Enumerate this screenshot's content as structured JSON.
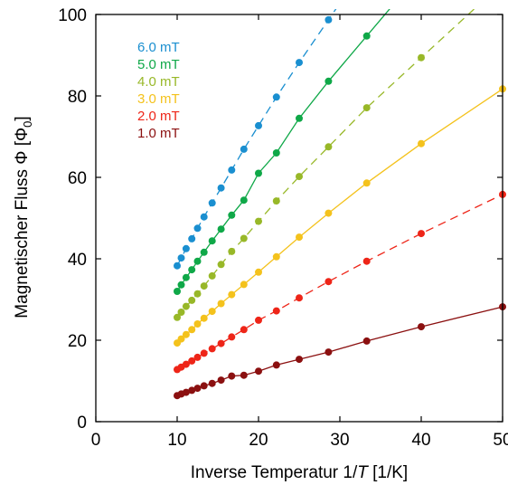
{
  "chart_data": {
    "type": "scatter",
    "xlabel": {
      "prefix": "Inverse Temperatur 1/",
      "var": "T",
      "suffix": " [1/K]"
    },
    "ylabel": {
      "prefix": "Magnetischer Fluss ",
      "symbol": "Φ",
      "unit_open": " [Φ",
      "unit_sub": "0",
      "unit_close": "]"
    },
    "xlim": [
      0,
      50
    ],
    "ylim": [
      0,
      100
    ],
    "xticks": [
      0,
      10,
      20,
      30,
      40,
      50
    ],
    "yticks": [
      0,
      20,
      40,
      60,
      80,
      100
    ],
    "grid": false,
    "legend_position": "top-left",
    "x": [
      10,
      10.5,
      11.1,
      11.8,
      12.5,
      13.3,
      14.3,
      15.4,
      16.7,
      18.2,
      20,
      22.2,
      25,
      28.6,
      33.3,
      40,
      50
    ],
    "series": [
      {
        "name": "6.0 mT",
        "color": "#1a8fd0",
        "line": "dashed",
        "values": [
          38.3,
          40.2,
          42.5,
          44.9,
          47.5,
          50.3,
          53.7,
          57.4,
          61.8,
          66.9,
          72.7,
          79.7,
          88.2,
          98.7,
          null,
          null,
          null
        ]
      },
      {
        "name": "5.0 mT",
        "color": "#0fa848",
        "line": "solid",
        "values": [
          32,
          33.6,
          35.4,
          37.3,
          39.4,
          41.6,
          44.4,
          47.3,
          50.7,
          54.4,
          61.0,
          66.0,
          74.5,
          83.6,
          94.7,
          null,
          null
        ]
      },
      {
        "name": "4.0 mT",
        "color": "#98b828",
        "line": "dashed",
        "values": [
          25.6,
          26.9,
          28.3,
          29.8,
          31.4,
          33.3,
          35.8,
          38.6,
          41.8,
          45.0,
          49.2,
          54.2,
          60.2,
          67.5,
          77.1,
          89.4,
          null
        ]
      },
      {
        "name": "3.0 mT",
        "color": "#f4c21c",
        "line": "solid",
        "values": [
          19.3,
          20.3,
          21.4,
          22.6,
          24.0,
          25.4,
          27.1,
          29.0,
          31.2,
          33.7,
          36.7,
          40.5,
          45.3,
          51.2,
          58.6,
          68.3,
          81.7
        ]
      },
      {
        "name": "2.0 mT",
        "color": "#ee2518",
        "line": "dashed",
        "values": [
          12.8,
          13.4,
          14.1,
          14.9,
          15.8,
          16.8,
          17.9,
          19.2,
          20.8,
          22.6,
          24.9,
          27.2,
          30.4,
          34.4,
          39.4,
          46.2,
          55.8
        ]
      },
      {
        "name": "1.0 mT",
        "color": "#8b1010",
        "line": "solid",
        "values": [
          6.4,
          6.8,
          7.2,
          7.7,
          8.2,
          8.8,
          9.4,
          10.2,
          11.2,
          11.4,
          12.4,
          13.9,
          15.3,
          17.1,
          19.8,
          23.3,
          28.2
        ]
      }
    ]
  }
}
